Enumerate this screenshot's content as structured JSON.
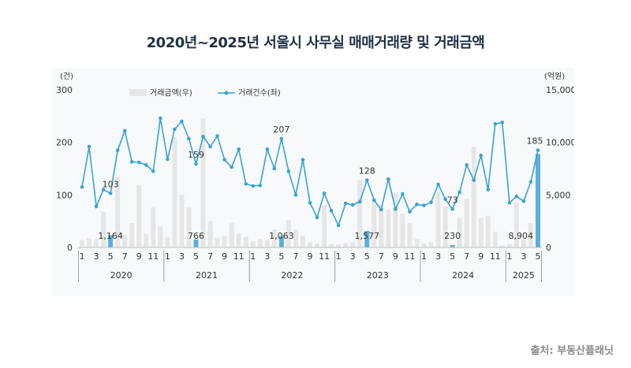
{
  "title": "2020년~2025년 서울시 사무실 매매거래량 및 거래금액",
  "source": "출처: 부동산플래닛",
  "colors": {
    "bar": "#e6e6e6",
    "bar_highlight": "#5aaee0",
    "line": "#3aa3d3",
    "text": "#333333",
    "title": "#1f3147"
  },
  "chart_data": {
    "type": "bar+line",
    "legend": {
      "position": "top-left",
      "bar_label": "거래금액(우)",
      "line_label": "거래건수(좌)"
    },
    "left_axis": {
      "unit": "(건)",
      "ticks": [
        "0",
        "100",
        "200",
        "300"
      ],
      "range": [
        0,
        300
      ]
    },
    "right_axis": {
      "unit": "(억원)",
      "ticks": [
        "0",
        "5,000",
        "10,000",
        "15,000"
      ],
      "range": [
        0,
        15000
      ]
    },
    "x_month_labels": [
      "1",
      "3",
      "5",
      "7",
      "9",
      "11",
      "1",
      "3",
      "5",
      "7",
      "9",
      "11",
      "1",
      "3",
      "5",
      "7",
      "9",
      "11",
      "1",
      "3",
      "5",
      "7",
      "9",
      "11",
      "1",
      "3",
      "5",
      "7",
      "9",
      "11",
      "1",
      "3",
      "5"
    ],
    "years": [
      {
        "label": "2020",
        "months": 12
      },
      {
        "label": "2021",
        "months": 12
      },
      {
        "label": "2022",
        "months": 12
      },
      {
        "label": "2023",
        "months": 12
      },
      {
        "label": "2024",
        "months": 12
      },
      {
        "label": "2025",
        "months": 5
      }
    ],
    "series": [
      {
        "name": "거래금액(우)",
        "axis": "right",
        "kind": "bar",
        "values": [
          700,
          850,
          800,
          3400,
          1164,
          6700,
          1200,
          2300,
          5900,
          1300,
          3800,
          2000,
          1000,
          10500,
          5000,
          3800,
          766,
          12300,
          2500,
          900,
          1100,
          2300,
          1300,
          1000,
          600,
          800,
          700,
          1700,
          1063,
          2600,
          1700,
          1100,
          500,
          400,
          4000,
          300,
          300,
          400,
          500,
          6400,
          1577,
          4500,
          4000,
          3600,
          5200,
          3200,
          2300,
          800,
          400,
          500,
          5200,
          3900,
          230,
          2800,
          4600,
          9600,
          2800,
          3000,
          1500,
          200,
          300,
          4300,
          800,
          2300,
          8904
        ],
        "highlight_indices": [
          4,
          16,
          28,
          40,
          52,
          64
        ]
      },
      {
        "name": "거래건수(좌)",
        "axis": "left",
        "kind": "line",
        "values": [
          115,
          192,
          78,
          110,
          103,
          185,
          222,
          163,
          162,
          157,
          145,
          246,
          168,
          225,
          240,
          207,
          159,
          211,
          192,
          212,
          167,
          153,
          187,
          121,
          117,
          118,
          187,
          150,
          207,
          145,
          100,
          167,
          85,
          57,
          103,
          70,
          42,
          84,
          81,
          87,
          128,
          90,
          72,
          130,
          73,
          102,
          68,
          82,
          80,
          86,
          120,
          92,
          73,
          105,
          157,
          128,
          175,
          110,
          235,
          238,
          85,
          97,
          88,
          125,
          185
        ]
      }
    ],
    "data_labels": [
      {
        "index": 4,
        "series": "bar",
        "text": "1,164"
      },
      {
        "index": 16,
        "series": "bar",
        "text": "766"
      },
      {
        "index": 28,
        "series": "bar",
        "text": "1,063"
      },
      {
        "index": 40,
        "series": "bar",
        "text": "1,577"
      },
      {
        "index": 52,
        "series": "bar",
        "text": "230"
      },
      {
        "index": 64,
        "series": "bar",
        "text": "8,904"
      },
      {
        "index": 4,
        "series": "line",
        "text": "103"
      },
      {
        "index": 16,
        "series": "line",
        "text": "159"
      },
      {
        "index": 28,
        "series": "line",
        "text": "207"
      },
      {
        "index": 40,
        "series": "line",
        "text": "128"
      },
      {
        "index": 52,
        "series": "line",
        "text": "73"
      },
      {
        "index": 64,
        "series": "line",
        "text": "185"
      }
    ]
  }
}
